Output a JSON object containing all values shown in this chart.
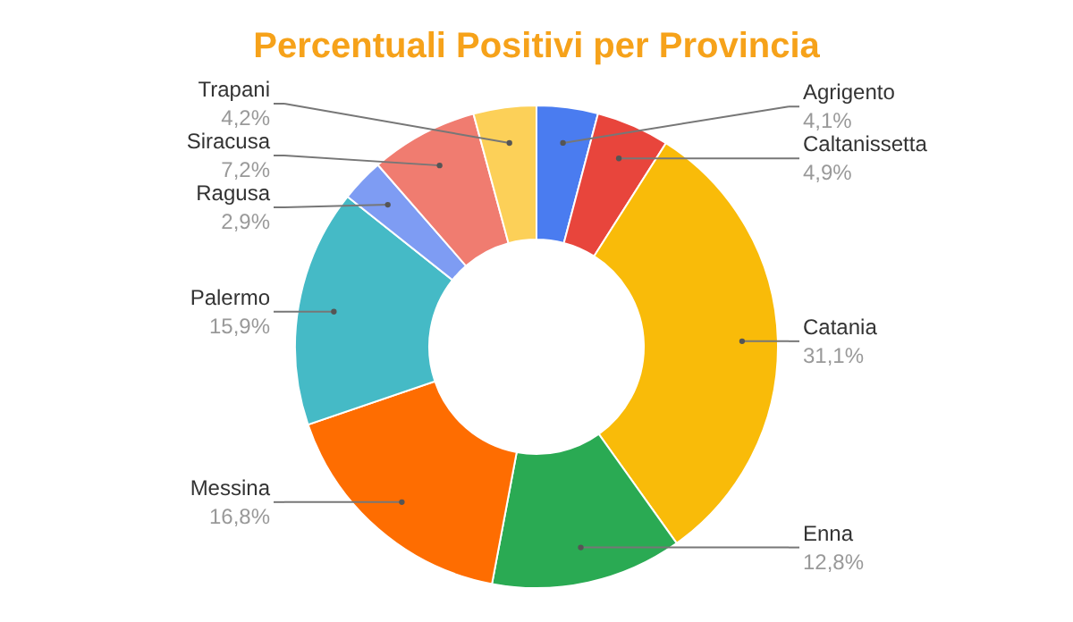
{
  "chart_data": {
    "type": "donut",
    "title": "Percentuali Positivi per Provincia",
    "categories": [
      "Agrigento",
      "Caltanissetta",
      "Catania",
      "Enna",
      "Messina",
      "Palermo",
      "Ragusa",
      "Siracusa",
      "Trapani"
    ],
    "values": [
      4.1,
      4.9,
      31.1,
      12.8,
      16.8,
      15.9,
      2.9,
      7.2,
      4.2
    ],
    "value_labels": [
      "4,1%",
      "4,9%",
      "31,1%",
      "12,8%",
      "16,8%",
      "15,9%",
      "2,9%",
      "7,2%",
      "4,2%"
    ],
    "colors": [
      "#4a7cf0",
      "#e8453c",
      "#f9bb09",
      "#2aaa53",
      "#fe6d01",
      "#45bac6",
      "#7e9cf3",
      "#f07c70",
      "#fcd058"
    ],
    "legend": false
  }
}
